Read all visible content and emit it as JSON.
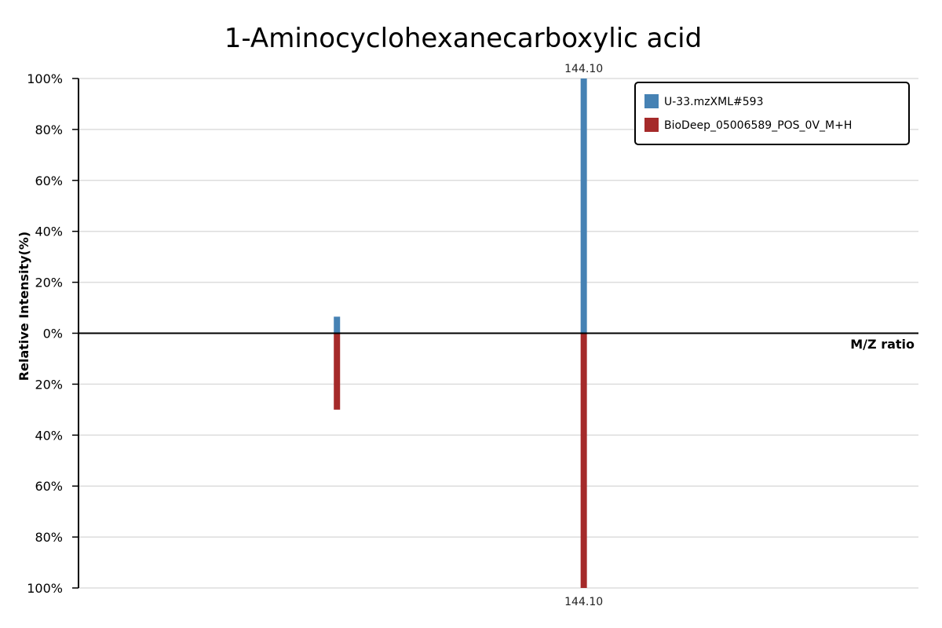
{
  "chart_data": {
    "type": "bar",
    "title": "1-Aminocyclohexanecarboxylic acid",
    "xlabel": "M/Z ratio",
    "ylabel": "Relative Intensity(%)",
    "y_ticks_top": [
      "100%",
      "80%",
      "60%",
      "40%",
      "20%",
      "0%"
    ],
    "y_ticks_bottom": [
      "20%",
      "40%",
      "60%",
      "80%",
      "100%"
    ],
    "ylim": [
      -100,
      100
    ],
    "grid": true,
    "legend_position": "top-right",
    "series": [
      {
        "name": "U-33.mzXML#593",
        "color": "#4682b4",
        "direction": "up",
        "peaks": [
          {
            "mz": 125.0,
            "intensity": 6.5
          },
          {
            "mz": 144.1,
            "intensity": 100,
            "label": "144.10"
          }
        ]
      },
      {
        "name": "BioDeep_05006589_POS_0V_M+H",
        "color": "#a52a2a",
        "direction": "down",
        "peaks": [
          {
            "mz": 125.0,
            "intensity": 30
          },
          {
            "mz": 144.1,
            "intensity": 100,
            "label": "144.10"
          }
        ]
      }
    ]
  }
}
